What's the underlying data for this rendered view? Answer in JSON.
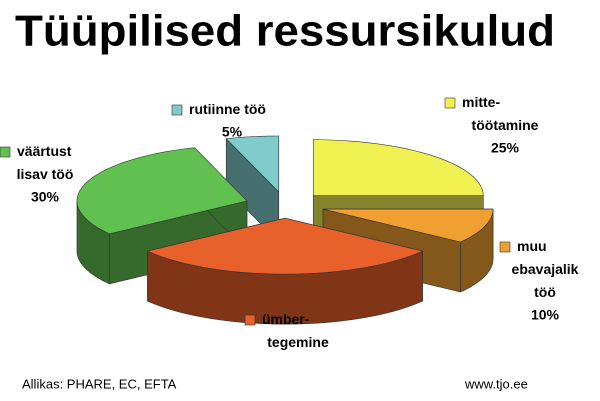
{
  "chart_data": {
    "type": "pie3d",
    "title": "Tüüpilised ressursikulud",
    "categories": [
      "mitte-\ntöötamine",
      "muu\nebavajalik\ntöö",
      "ümber-\ntegemine",
      "väärtust\nlisav töö",
      "rutiinne töö"
    ],
    "values": [
      25,
      10,
      30,
      30,
      5
    ],
    "value_labels": [
      "25%",
      "10%",
      null,
      "30%",
      "5%"
    ],
    "colors": [
      "#f0f050",
      "#f0a030",
      "#e8602a",
      "#60c050",
      "#80cccc"
    ],
    "source": "Allikas: PHARE, EC, EFTA",
    "website": "www.tjo.ee"
  }
}
